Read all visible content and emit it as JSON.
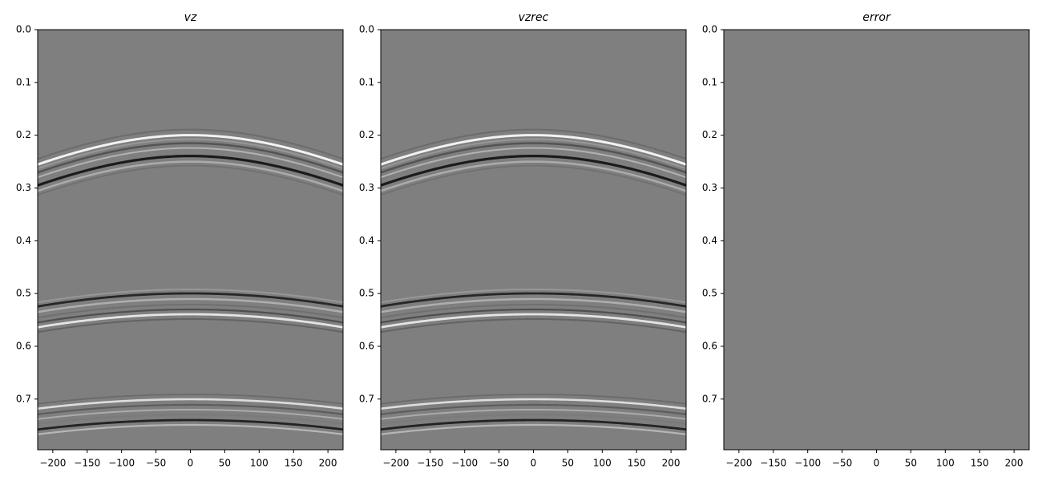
{
  "chart_data": [
    {
      "type": "image",
      "title": "vz",
      "xlim": [
        -222,
        222
      ],
      "ylim": [
        0.796,
        0
      ],
      "xticks": [
        {
          "value": -200,
          "label": "−200"
        },
        {
          "value": -150,
          "label": "−150"
        },
        {
          "value": -100,
          "label": "−100"
        },
        {
          "value": -50,
          "label": "−50"
        },
        0,
        50,
        100,
        150,
        200
      ],
      "yticks": [
        {
          "value": 0,
          "label": "0.0"
        },
        0.1,
        0.2,
        0.3,
        0.4,
        0.5,
        0.6,
        0.7
      ]
    },
    {
      "type": "image",
      "title": "vzrec",
      "xlim": [
        -222,
        222
      ],
      "ylim": [
        0.796,
        0
      ],
      "xticks": [
        {
          "value": -200,
          "label": "−200"
        },
        {
          "value": -150,
          "label": "−150"
        },
        {
          "value": -100,
          "label": "−100"
        },
        {
          "value": -50,
          "label": "−50"
        },
        0,
        50,
        100,
        150,
        200
      ],
      "yticks": [
        {
          "value": 0,
          "label": "0.0"
        },
        0.1,
        0.2,
        0.3,
        0.4,
        0.5,
        0.6,
        0.7
      ]
    },
    {
      "type": "image",
      "title": "error",
      "xlim": [
        -222,
        222
      ],
      "ylim": [
        0.796,
        0
      ],
      "xticks": [
        {
          "value": -200,
          "label": "−200"
        },
        {
          "value": -150,
          "label": "−150"
        },
        {
          "value": -100,
          "label": "−100"
        },
        {
          "value": -50,
          "label": "−50"
        },
        0,
        50,
        100,
        150,
        200
      ],
      "yticks": [
        {
          "value": 0,
          "label": "0.0"
        },
        0.1,
        0.2,
        0.3,
        0.4,
        0.5,
        0.6,
        0.7
      ]
    }
  ]
}
